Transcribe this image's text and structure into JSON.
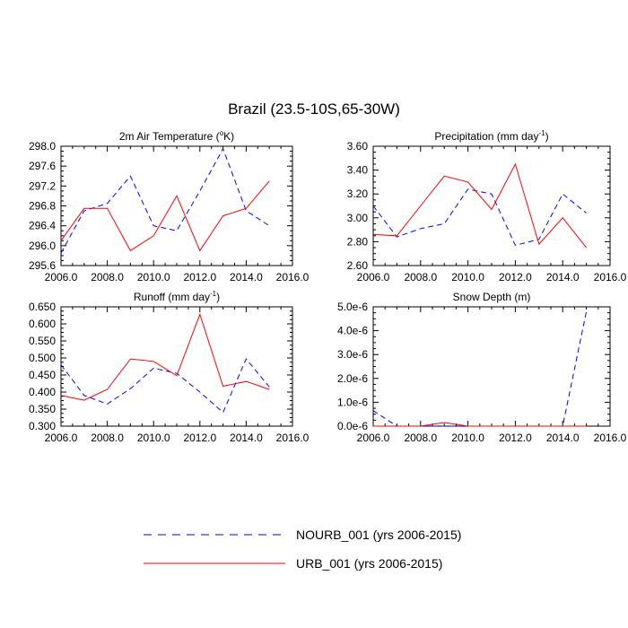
{
  "title": "Brazil (23.5-10S,65-30W)",
  "colors": {
    "nourb": "#0000ff",
    "urb": "#ff0000",
    "axis": "#000000"
  },
  "legend": {
    "nourb_label": "NOURB_001 (yrs 2006-2015)",
    "urb_label": "URB_001 (yrs 2006-2015)"
  },
  "chart_data": [
    {
      "type": "line",
      "title_main": "2m Air Temperature (",
      "title_sup": "o",
      "title_after": "K)",
      "x": [
        2006,
        2007,
        2008,
        2009,
        2010,
        2011,
        2012,
        2013,
        2014,
        2015
      ],
      "xlim": [
        2006,
        2016
      ],
      "xticks": [
        2006,
        2008,
        2010,
        2012,
        2014,
        2016
      ],
      "xtick_labels": [
        "2006.0",
        "2008.0",
        "2010.0",
        "2012.0",
        "2014.0",
        "2016.0"
      ],
      "ylim": [
        295.6,
        298.0
      ],
      "yticks": [
        295.6,
        296.0,
        296.4,
        296.8,
        297.2,
        297.6,
        298.0
      ],
      "ytick_labels": [
        "295.6",
        "296.0",
        "296.4",
        "296.8",
        "297.2",
        "297.6",
        "298.0"
      ],
      "series": [
        {
          "name": "NOURB_001 (yrs 2006-2015)",
          "style": "dashed",
          "color": "#0000ff",
          "values": [
            295.85,
            296.7,
            296.85,
            297.4,
            296.4,
            296.3,
            297.1,
            297.95,
            296.7,
            296.4
          ]
        },
        {
          "name": "URB_001 (yrs 2006-2015)",
          "style": "solid",
          "color": "#ff0000",
          "values": [
            296.1,
            296.75,
            296.75,
            295.9,
            296.2,
            297.0,
            295.9,
            296.6,
            296.75,
            297.3
          ]
        }
      ]
    },
    {
      "type": "line",
      "title_main": "Precipitation (mm day",
      "title_sup": "-1",
      "title_after": ")",
      "x": [
        2006,
        2007,
        2008,
        2009,
        2010,
        2011,
        2012,
        2013,
        2014,
        2015
      ],
      "xlim": [
        2006,
        2016
      ],
      "xticks": [
        2006,
        2008,
        2010,
        2012,
        2014,
        2016
      ],
      "xtick_labels": [
        "2006.0",
        "2008.0",
        "2010.0",
        "2012.0",
        "2014.0",
        "2016.0"
      ],
      "ylim": [
        2.6,
        3.6
      ],
      "yticks": [
        2.6,
        2.8,
        3.0,
        3.2,
        3.4,
        3.6
      ],
      "ytick_labels": [
        "2.60",
        "2.80",
        "3.00",
        "3.20",
        "3.40",
        "3.60"
      ],
      "series": [
        {
          "name": "NOURB_001 (yrs 2006-2015)",
          "style": "dashed",
          "color": "#0000ff",
          "values": [
            3.1,
            2.84,
            2.91,
            2.95,
            3.24,
            3.2,
            2.77,
            2.82,
            3.2,
            3.04
          ]
        },
        {
          "name": "URB_001 (yrs 2006-2015)",
          "style": "solid",
          "color": "#ff0000",
          "values": [
            2.86,
            2.85,
            3.1,
            3.35,
            3.3,
            3.07,
            3.45,
            2.78,
            3.0,
            2.75
          ]
        }
      ]
    },
    {
      "type": "line",
      "title_main": "Runoff (mm day",
      "title_sup": "-1",
      "title_after": ")",
      "x": [
        2006,
        2007,
        2008,
        2009,
        2010,
        2011,
        2012,
        2013,
        2014,
        2015
      ],
      "xlim": [
        2006,
        2016
      ],
      "xticks": [
        2006,
        2008,
        2010,
        2012,
        2014,
        2016
      ],
      "xtick_labels": [
        "2006.0",
        "2008.0",
        "2010.0",
        "2012.0",
        "2014.0",
        "2016.0"
      ],
      "ylim": [
        0.3,
        0.65
      ],
      "yticks": [
        0.3,
        0.35,
        0.4,
        0.45,
        0.5,
        0.55,
        0.6,
        0.65
      ],
      "ytick_labels": [
        "0.300",
        "0.350",
        "0.400",
        "0.450",
        "0.500",
        "0.550",
        "0.600",
        "0.650"
      ],
      "series": [
        {
          "name": "NOURB_001 (yrs 2006-2015)",
          "style": "dashed",
          "color": "#0000ff",
          "values": [
            0.48,
            0.39,
            0.365,
            0.41,
            0.47,
            0.455,
            0.4,
            0.34,
            0.497,
            0.415
          ]
        },
        {
          "name": "URB_001 (yrs 2006-2015)",
          "style": "solid",
          "color": "#ff0000",
          "values": [
            0.39,
            0.376,
            0.408,
            0.497,
            0.49,
            0.448,
            0.628,
            0.417,
            0.431,
            0.408
          ]
        }
      ]
    },
    {
      "type": "line",
      "title_main": "Snow Depth (m)",
      "title_sup": "",
      "title_after": "",
      "x": [
        2006,
        2007,
        2008,
        2009,
        2010,
        2011,
        2012,
        2013,
        2014,
        2015
      ],
      "xlim": [
        2006,
        2016
      ],
      "xticks": [
        2006,
        2008,
        2010,
        2012,
        2014,
        2016
      ],
      "xtick_labels": [
        "2006.0",
        "2008.0",
        "2010.0",
        "2012.0",
        "2014.0",
        "2016.0"
      ],
      "ylim": [
        0,
        5e-06
      ],
      "yticks": [
        0,
        1e-06,
        2e-06,
        3e-06,
        4e-06,
        5e-06
      ],
      "ytick_labels": [
        "0.0e-6",
        "1.0e-6",
        "2.0e-6",
        "3.0e-6",
        "4.0e-6",
        "5.0e-6"
      ],
      "series": [
        {
          "name": "NOURB_001 (yrs 2006-2015)",
          "style": "dashed",
          "color": "#0000ff",
          "values": [
            6.5e-07,
            0,
            0,
            0,
            0,
            0,
            0,
            0,
            0,
            4.8e-06
          ]
        },
        {
          "name": "URB_001 (yrs 2006-2015)",
          "style": "solid",
          "color": "#ff0000",
          "values": [
            0,
            0,
            0,
            1.5e-07,
            0,
            0,
            0,
            0,
            0,
            0
          ]
        }
      ]
    }
  ]
}
